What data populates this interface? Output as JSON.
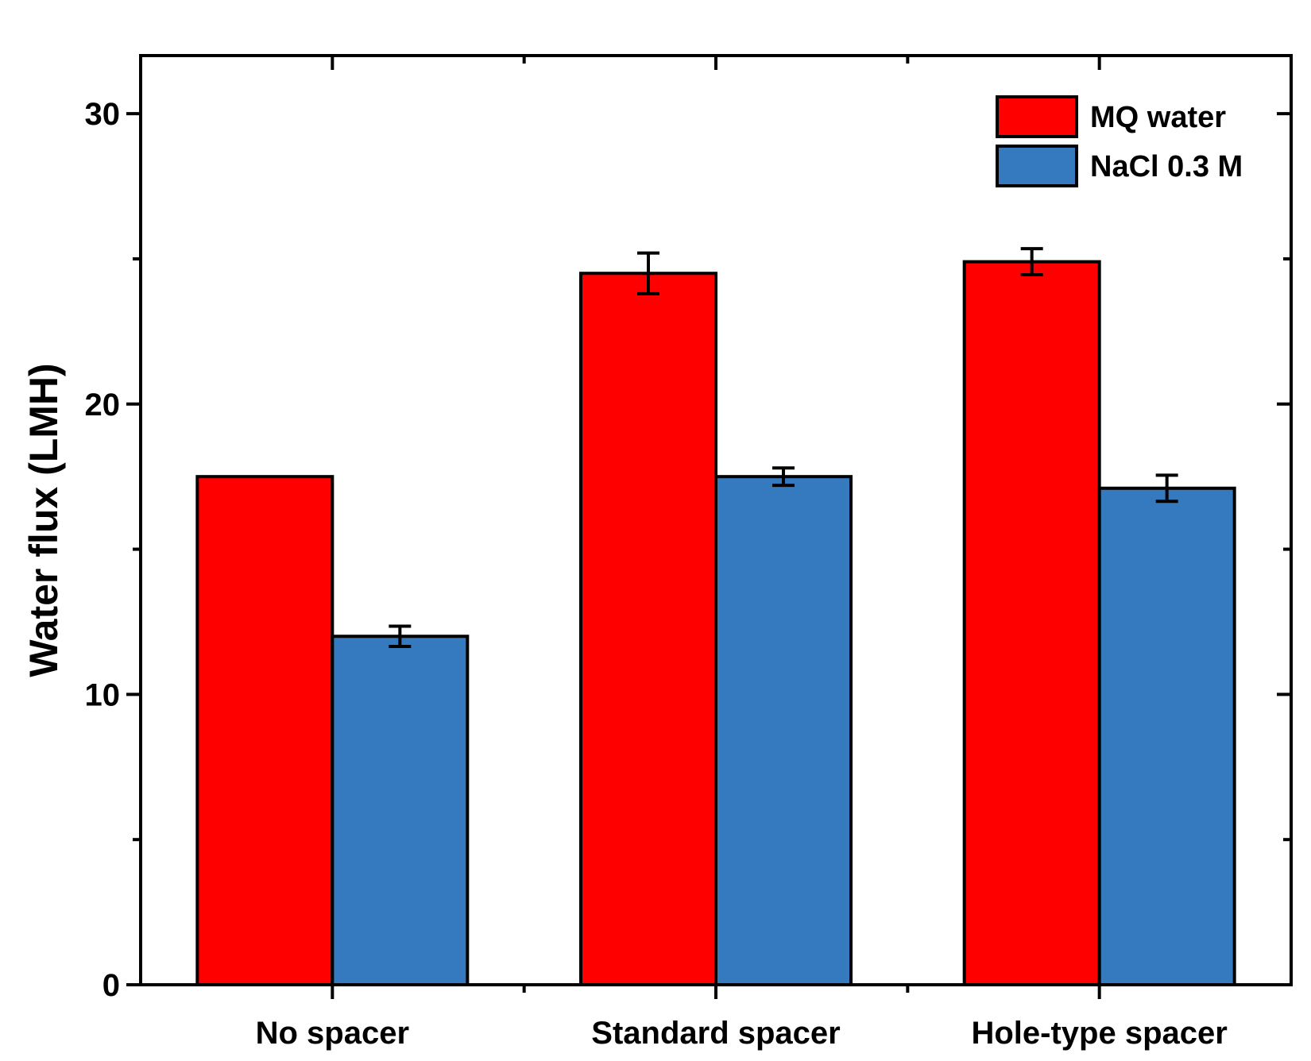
{
  "chart_data": {
    "type": "bar",
    "title": "",
    "xlabel": "",
    "ylabel": "Water flux (LMH)",
    "ylim": [
      0,
      32
    ],
    "yticks": [
      0,
      10,
      20,
      30
    ],
    "categories": [
      "No spacer",
      "Standard spacer",
      "Hole-type spacer"
    ],
    "series": [
      {
        "name": "MQ water",
        "color": "#ff0000",
        "values": [
          17.5,
          24.5,
          24.9
        ],
        "errors": [
          0.0,
          0.7,
          0.45
        ]
      },
      {
        "name": "NaCl 0.3 M",
        "color": "#3579be",
        "values": [
          12.0,
          17.5,
          17.1
        ],
        "errors": [
          0.35,
          0.3,
          0.45
        ]
      }
    ],
    "legend": "top-right",
    "grid": false
  }
}
